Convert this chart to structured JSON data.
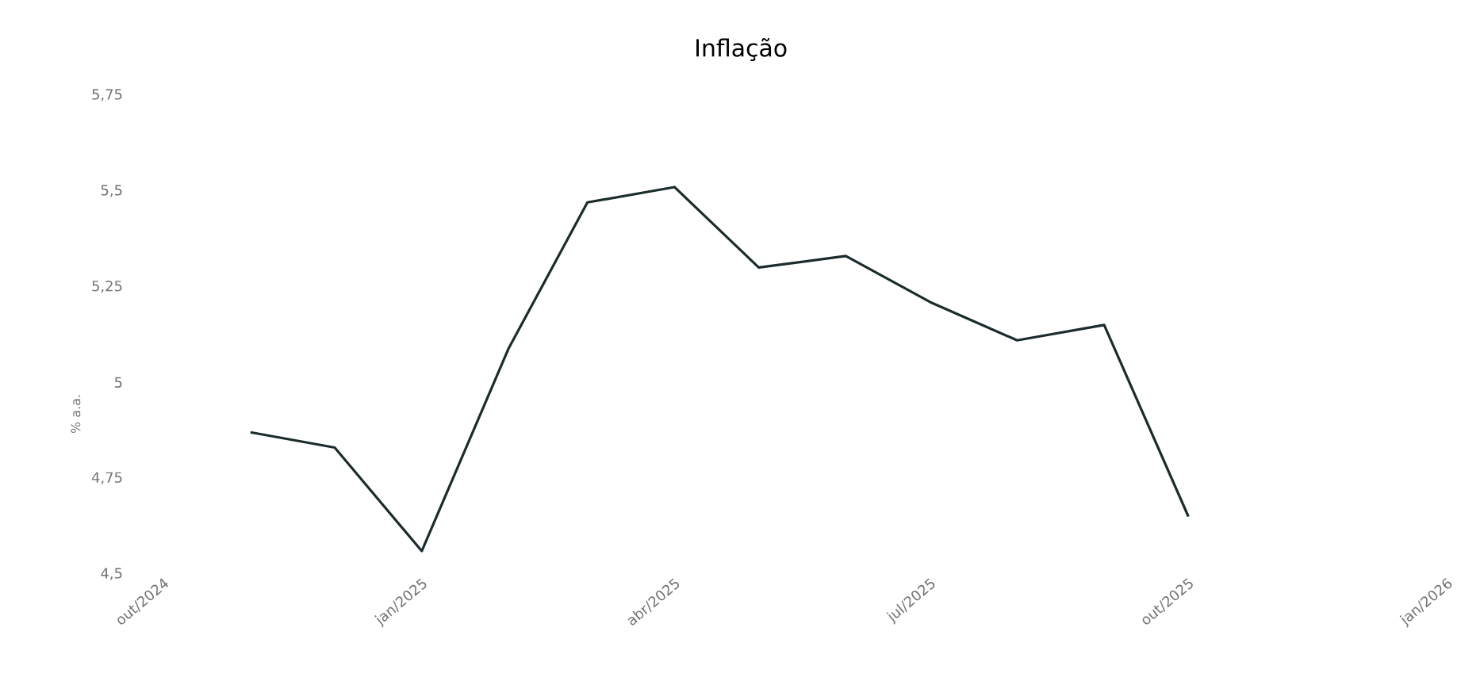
{
  "chart_data": {
    "type": "line",
    "title": "Inflação",
    "ylabel": "% a.a.",
    "x": [
      "2024-11-01",
      "2024-12-01",
      "2025-01-01",
      "2025-02-01",
      "2025-03-01",
      "2025-04-01",
      "2025-05-01",
      "2025-06-01",
      "2025-07-01",
      "2025-08-01",
      "2025-09-01",
      "2025-10-01"
    ],
    "series": [
      {
        "color": "#1c2b2b",
        "values": [
          4.87,
          4.83,
          4.56,
          5.09,
          5.47,
          5.51,
          5.3,
          5.33,
          5.21,
          5.11,
          5.15,
          4.65
        ]
      }
    ],
    "xlim": [
      "2024-10-01",
      "2026-01-01"
    ],
    "xticks": [
      {
        "value": "2024-10-01",
        "label": "out/2024"
      },
      {
        "value": "2025-01-01",
        "label": "jan/2025"
      },
      {
        "value": "2025-04-01",
        "label": "abr/2025"
      },
      {
        "value": "2025-07-01",
        "label": "jul/2025"
      },
      {
        "value": "2025-10-01",
        "label": "out/2025"
      },
      {
        "value": "2026-01-01",
        "label": "jan/2026"
      }
    ],
    "ylim": [
      4.5,
      5.75
    ],
    "yticks": [
      {
        "value": 4.5,
        "label": "4,5"
      },
      {
        "value": 4.75,
        "label": "4,75"
      },
      {
        "value": 5,
        "label": "5"
      },
      {
        "value": 5.25,
        "label": "5,25"
      },
      {
        "value": 5.5,
        "label": "5,5"
      },
      {
        "value": 5.75,
        "label": "5,75"
      }
    ]
  }
}
